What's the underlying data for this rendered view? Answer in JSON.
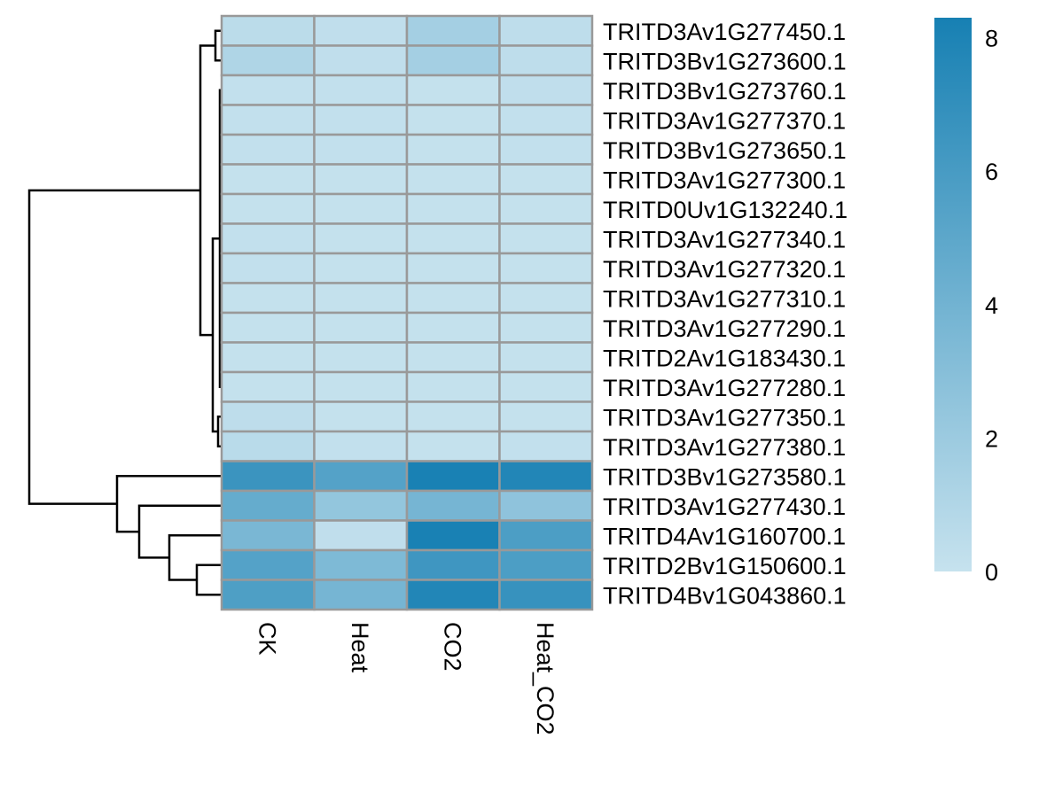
{
  "chart_data": {
    "type": "heatmap",
    "columns": [
      "CK",
      "Heat",
      "CO2",
      "Heat_CO2"
    ],
    "rows": [
      "TRITD3Av1G277450.1",
      "TRITD3Bv1G273600.1",
      "TRITD3Bv1G273760.1",
      "TRITD3Av1G277370.1",
      "TRITD3Bv1G273650.1",
      "TRITD3Av1G277300.1",
      "TRITD0Uv1G132240.1",
      "TRITD3Av1G277340.1",
      "TRITD3Av1G277320.1",
      "TRITD3Av1G277310.1",
      "TRITD3Av1G277290.1",
      "TRITD2Av1G183430.1",
      "TRITD3Av1G277280.1",
      "TRITD3Av1G277350.1",
      "TRITD3Av1G277380.1",
      "TRITD3Bv1G273580.1",
      "TRITD3Av1G277430.1",
      "TRITD4Av1G160700.1",
      "TRITD2Bv1G150600.1",
      "TRITD4Bv1G043860.1"
    ],
    "values": [
      [
        0.5,
        0.3,
        1.6,
        0.4
      ],
      [
        1.1,
        0.3,
        1.6,
        0.4
      ],
      [
        0.2,
        0.2,
        0.1,
        0.3
      ],
      [
        0.2,
        0.2,
        0.1,
        0.2
      ],
      [
        0.2,
        0.2,
        0.1,
        0.2
      ],
      [
        0.1,
        0.1,
        0.1,
        0.1
      ],
      [
        0.1,
        0.1,
        0.1,
        0.1
      ],
      [
        0.2,
        0.1,
        0.1,
        0.1
      ],
      [
        0.2,
        0.1,
        0.1,
        0.1
      ],
      [
        0.1,
        0.1,
        0.1,
        0.1
      ],
      [
        0.1,
        0.1,
        0.1,
        0.1
      ],
      [
        0.1,
        0.1,
        0.1,
        0.1
      ],
      [
        0.1,
        0.1,
        0.1,
        0.1
      ],
      [
        0.4,
        0.1,
        0.1,
        0.1
      ],
      [
        0.6,
        0.2,
        0.1,
        0.2
      ],
      [
        6.6,
        5.4,
        8.2,
        7.8
      ],
      [
        4.6,
        2.4,
        3.8,
        2.6
      ],
      [
        3.6,
        0.3,
        8.2,
        5.8
      ],
      [
        5.4,
        3.4,
        6.4,
        5.8
      ],
      [
        5.7,
        3.8,
        7.8,
        6.8
      ]
    ],
    "color_scale": {
      "min": 0,
      "max": 8.3,
      "low_color": "#c6e2ee",
      "high_color": "#1780b3",
      "ticks": [
        0,
        2,
        4,
        6,
        8
      ],
      "tick_labels": [
        "0",
        "2",
        "4",
        "6",
        "8"
      ]
    },
    "row_dendrogram": "left",
    "title": "",
    "xlabel": "",
    "ylabel": ""
  }
}
